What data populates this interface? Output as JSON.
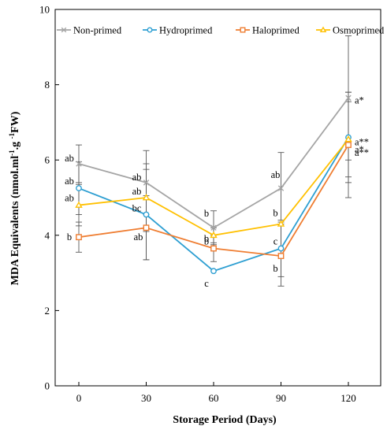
{
  "chart_data": {
    "type": "line",
    "xlabel": "Storage Period (Days)",
    "ylabel_parts": [
      "MDA Equivalents (nmol.ml",
      "-1",
      ".g ",
      "-1",
      "FW)"
    ],
    "ylabel": "MDA Equivalents (nmol.ml-1.g -1FW)",
    "x": [
      0,
      30,
      60,
      90,
      120
    ],
    "x_tick_labels": [
      "0",
      "30",
      "60",
      "90",
      "120"
    ],
    "ylim": [
      0,
      10
    ],
    "y_ticks": [
      0,
      2,
      4,
      6,
      8,
      10
    ],
    "y_tick_labels": [
      "0",
      "2",
      "4",
      "6",
      "8",
      "10"
    ],
    "legend_position": "top",
    "grid": false,
    "series": [
      {
        "name": "Non-primed",
        "color": "#a5a5a5",
        "marker": "x",
        "values": [
          5.9,
          5.4,
          4.2,
          5.25,
          7.65
        ],
        "err": [
          0.5,
          0.85,
          0.45,
          0.95,
          1.65
        ],
        "letters": [
          "ab",
          "ab",
          "b",
          "ab",
          "a*"
        ]
      },
      {
        "name": "Hydroprimed",
        "color": "#2e9fd2",
        "marker": "circle",
        "values": [
          5.25,
          4.55,
          3.05,
          3.65,
          6.6
        ],
        "err": [
          0.7,
          1.2,
          0.0,
          0.75,
          1.2
        ],
        "letters": [
          "ab",
          "bc",
          "c",
          "c",
          "a**"
        ]
      },
      {
        "name": "Haloprimed",
        "color": "#ef7d31",
        "marker": "square",
        "values": [
          3.95,
          4.2,
          3.65,
          3.45,
          6.4
        ],
        "err": [
          0.4,
          0.85,
          0.35,
          0.8,
          1.4
        ],
        "letters": [
          "b",
          "ab",
          "b",
          "b",
          "a*"
        ]
      },
      {
        "name": "Osmoprimed",
        "color": "#ffc000",
        "marker": "triangle",
        "values": [
          4.8,
          5.0,
          4.0,
          4.3,
          6.55
        ],
        "err": [
          0.55,
          0.9,
          0.2,
          0.05,
          1.0
        ],
        "letters": [
          "ab",
          "ab",
          "b",
          "b",
          "a**"
        ]
      }
    ]
  }
}
